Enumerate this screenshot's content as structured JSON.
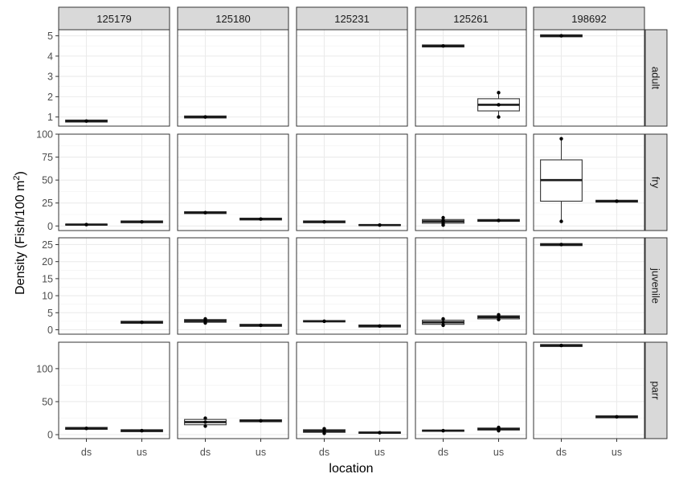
{
  "chart_data": {
    "type": "boxplot",
    "xlabel": "location",
    "ylabel_main": "Density (Fish/100 m",
    "ylabel_sup": "2",
    "ylabel_close": ")",
    "columns": [
      "125179",
      "125180",
      "125231",
      "125261",
      "198692"
    ],
    "rows": [
      "adult",
      "fry",
      "juvenile",
      "parr"
    ],
    "x_categories": [
      "ds",
      "us"
    ],
    "grid": true,
    "row_axes": [
      {
        "ylim": [
          0.55,
          5.3
        ],
        "ticks": [
          1,
          2,
          3,
          4,
          5
        ]
      },
      {
        "ylim": [
          -5,
          100
        ],
        "ticks": [
          0,
          25,
          50,
          75,
          100
        ]
      },
      {
        "ylim": [
          -1.3,
          27
        ],
        "ticks": [
          0,
          5,
          10,
          15,
          20,
          25
        ]
      },
      {
        "ylim": [
          -6,
          140
        ],
        "ticks": [
          0,
          50,
          100
        ]
      }
    ],
    "panels": {
      "adult": {
        "125179": {
          "ds": {
            "q1": 0.75,
            "median": 0.8,
            "q3": 0.85,
            "points": [
              0.8
            ]
          }
        },
        "125180": {
          "ds": {
            "q1": 0.95,
            "median": 1.0,
            "q3": 1.05,
            "points": [
              1.0
            ]
          }
        },
        "125231": {},
        "125261": {
          "ds": {
            "q1": 4.45,
            "median": 4.5,
            "q3": 4.55,
            "points": [
              4.5
            ]
          },
          "us": {
            "lower": 1.0,
            "q1": 1.3,
            "median": 1.6,
            "q3": 1.9,
            "upper": 2.2,
            "points": [
              1.0,
              1.6,
              2.2
            ]
          }
        },
        "198692": {
          "ds": {
            "q1": 4.95,
            "median": 5.0,
            "q3": 5.05,
            "points": [
              5.0
            ]
          }
        }
      },
      "fry": {
        "125179": {
          "ds": {
            "q1": 1,
            "median": 1.5,
            "q3": 2,
            "points": [
              1.5
            ]
          },
          "us": {
            "q1": 3.5,
            "median": 4.5,
            "q3": 5.5,
            "points": [
              4.5
            ]
          }
        },
        "125180": {
          "ds": {
            "q1": 13.5,
            "median": 14.5,
            "q3": 15.5,
            "points": [
              14.5
            ]
          },
          "us": {
            "q1": 6.5,
            "median": 7.5,
            "q3": 8.5,
            "points": [
              7.5
            ]
          }
        },
        "125231": {
          "ds": {
            "q1": 3.5,
            "median": 4.5,
            "q3": 5.5,
            "points": [
              4.5
            ]
          },
          "us": {
            "q1": 0.5,
            "median": 1,
            "q3": 1.5,
            "points": [
              1
            ]
          }
        },
        "125261": {
          "ds": {
            "lower": 1,
            "q1": 3,
            "median": 5,
            "q3": 7,
            "upper": 9,
            "points": [
              1,
              3,
              6,
              9
            ]
          },
          "us": {
            "q1": 5,
            "median": 6,
            "q3": 7,
            "points": [
              6
            ]
          }
        },
        "198692": {
          "ds": {
            "lower": 5,
            "q1": 27,
            "median": 50,
            "q3": 72,
            "upper": 95,
            "points": [
              5,
              95
            ]
          },
          "us": {
            "q1": 26,
            "median": 27,
            "q3": 28,
            "points": [
              27
            ]
          }
        }
      },
      "juvenile": {
        "125179": {
          "us": {
            "q1": 1.9,
            "median": 2.2,
            "q3": 2.5,
            "points": [
              2.2
            ]
          }
        },
        "125180": {
          "ds": {
            "lower": 2.0,
            "q1": 2.2,
            "median": 2.6,
            "q3": 3.0,
            "upper": 3.2,
            "points": [
              2.0,
              2.6,
              3.2
            ]
          },
          "us": {
            "q1": 1.0,
            "median": 1.3,
            "q3": 1.6,
            "points": [
              1.3
            ]
          }
        },
        "125231": {
          "ds": {
            "q1": 2.3,
            "median": 2.5,
            "q3": 2.7,
            "points": [
              2.5
            ]
          },
          "us": {
            "q1": 0.8,
            "median": 1.1,
            "q3": 1.4,
            "points": [
              1.1
            ]
          }
        },
        "125261": {
          "ds": {
            "lower": 1.3,
            "q1": 1.6,
            "median": 2.2,
            "q3": 2.8,
            "upper": 3.2,
            "points": [
              1.3,
              2.2,
              3.2
            ]
          },
          "us": {
            "lower": 3.0,
            "q1": 3.2,
            "median": 3.7,
            "q3": 4.1,
            "upper": 4.4,
            "points": [
              3.0,
              3.7,
              4.4
            ]
          }
        },
        "198692": {
          "ds": {
            "q1": 24.7,
            "median": 25,
            "q3": 25.3,
            "points": [
              25
            ]
          }
        }
      },
      "parr": {
        "125179": {
          "ds": {
            "q1": 8,
            "median": 9.5,
            "q3": 11,
            "points": [
              9.5
            ]
          },
          "us": {
            "q1": 4.5,
            "median": 6,
            "q3": 7.5,
            "points": [
              6
            ]
          }
        },
        "125180": {
          "ds": {
            "lower": 13,
            "q1": 15,
            "median": 19,
            "q3": 23,
            "upper": 25,
            "points": [
              13,
              19,
              25
            ]
          },
          "us": {
            "q1": 19.5,
            "median": 21,
            "q3": 22.5,
            "points": [
              21
            ]
          }
        },
        "125231": {
          "ds": {
            "lower": 2,
            "q1": 3.5,
            "median": 5.5,
            "q3": 7.5,
            "upper": 9,
            "points": [
              2,
              5.5,
              9
            ]
          },
          "us": {
            "q1": 2,
            "median": 3,
            "q3": 4,
            "points": [
              3
            ]
          }
        },
        "125261": {
          "ds": {
            "q1": 5,
            "median": 6,
            "q3": 7,
            "points": [
              6
            ]
          },
          "us": {
            "lower": 6,
            "q1": 7,
            "median": 8.5,
            "q3": 10,
            "upper": 11,
            "points": [
              6,
              8.5,
              11
            ]
          }
        },
        "198692": {
          "ds": {
            "q1": 133.5,
            "median": 135,
            "q3": 136.5,
            "points": [
              135
            ]
          },
          "us": {
            "q1": 25.5,
            "median": 27,
            "q3": 28.5,
            "points": [
              27
            ]
          }
        }
      }
    }
  }
}
